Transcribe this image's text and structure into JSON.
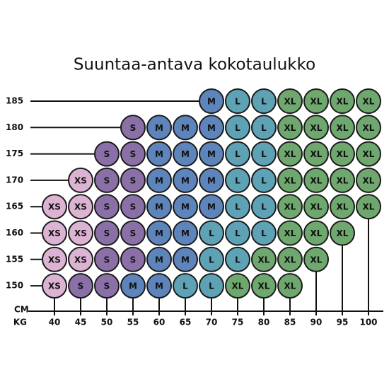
{
  "title": "Suuntaa-antava kokotaulukko",
  "height_unit": "CM",
  "weight_unit": "KG",
  "heights": [
    185,
    180,
    175,
    170,
    165,
    160,
    155,
    150
  ],
  "weights": [
    40,
    45,
    50,
    55,
    60,
    65,
    70,
    75,
    80,
    85,
    90,
    95,
    100
  ],
  "grid": [
    [
      null,
      null,
      null,
      null,
      null,
      null,
      "M",
      "L",
      "L",
      "XL",
      "XL",
      "XL",
      "XL"
    ],
    [
      null,
      null,
      null,
      "S",
      "M",
      "M",
      "M",
      "L",
      "L",
      "XL",
      "XL",
      "XL",
      "XL"
    ],
    [
      null,
      null,
      "S",
      "S",
      "M",
      "M",
      "M",
      "L",
      "L",
      "XL",
      "XL",
      "XL",
      "XL"
    ],
    [
      null,
      "XS",
      "S",
      "S",
      "M",
      "M",
      "M",
      "L",
      "L",
      "XL",
      "XL",
      "XL",
      "XL"
    ],
    [
      "XS",
      "XS",
      "S",
      "S",
      "M",
      "M",
      "M",
      "L",
      "L",
      "XL",
      "XL",
      "XL",
      "XL"
    ],
    [
      "XS",
      "XS",
      "S",
      "S",
      "M",
      "M",
      "L",
      "L",
      "L",
      "XL",
      "XL",
      "XL",
      null
    ],
    [
      "XS",
      "XS",
      "S",
      "S",
      "M",
      "M",
      "L",
      "L",
      "XL",
      "XL",
      "XL",
      null,
      null
    ],
    [
      "XS",
      "S",
      "S",
      "M",
      "M",
      "L",
      "L",
      "XL",
      "XL",
      "XL",
      null,
      null,
      null
    ]
  ]
}
